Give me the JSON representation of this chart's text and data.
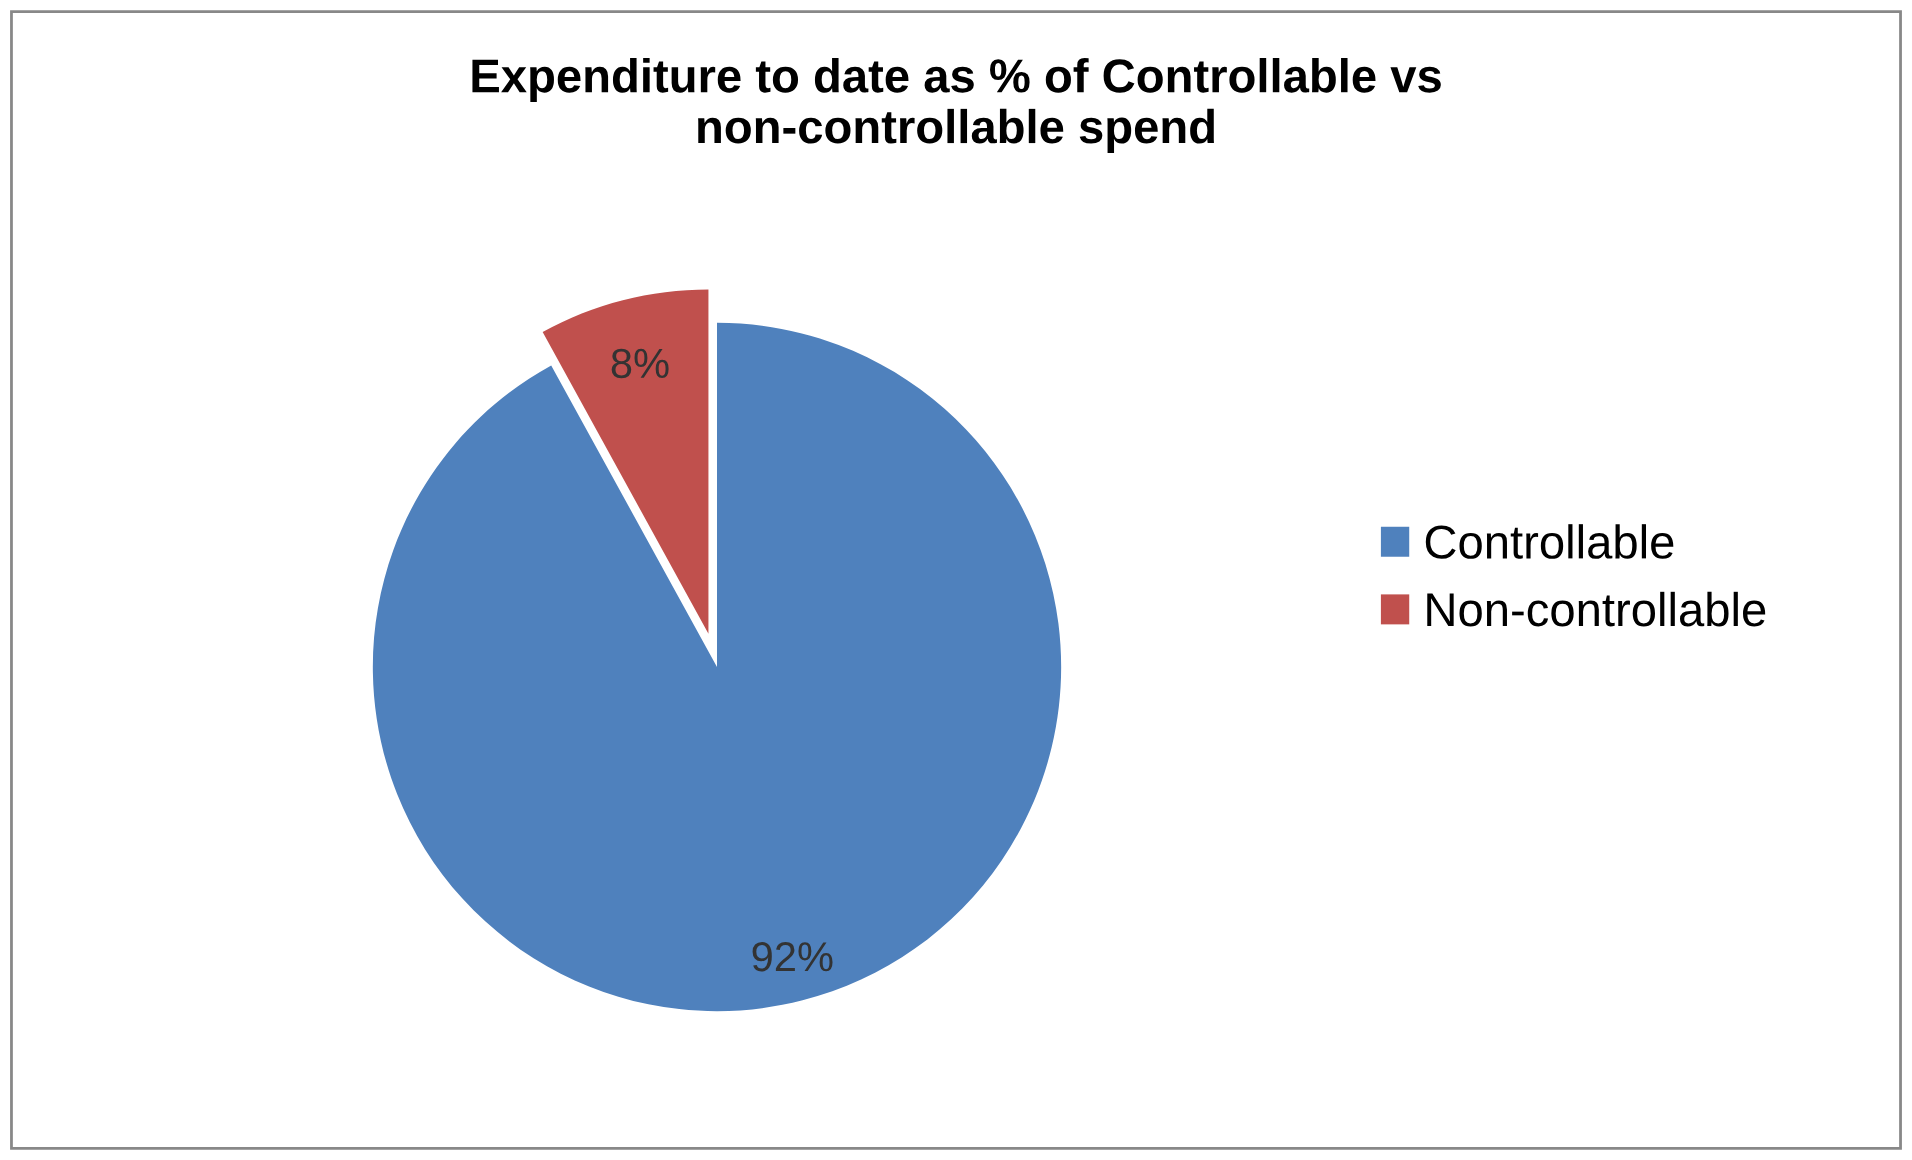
{
  "chart_data": {
    "type": "pie",
    "title": "Expenditure to date as % of Controllable vs\nnon-controllable spend",
    "categories": [
      "Controllable",
      "Non-controllable"
    ],
    "values": [
      92,
      8
    ],
    "colors": [
      "#4f81bd",
      "#c0504d"
    ],
    "value_labels": [
      "92%",
      "8%"
    ],
    "legend": "right"
  }
}
